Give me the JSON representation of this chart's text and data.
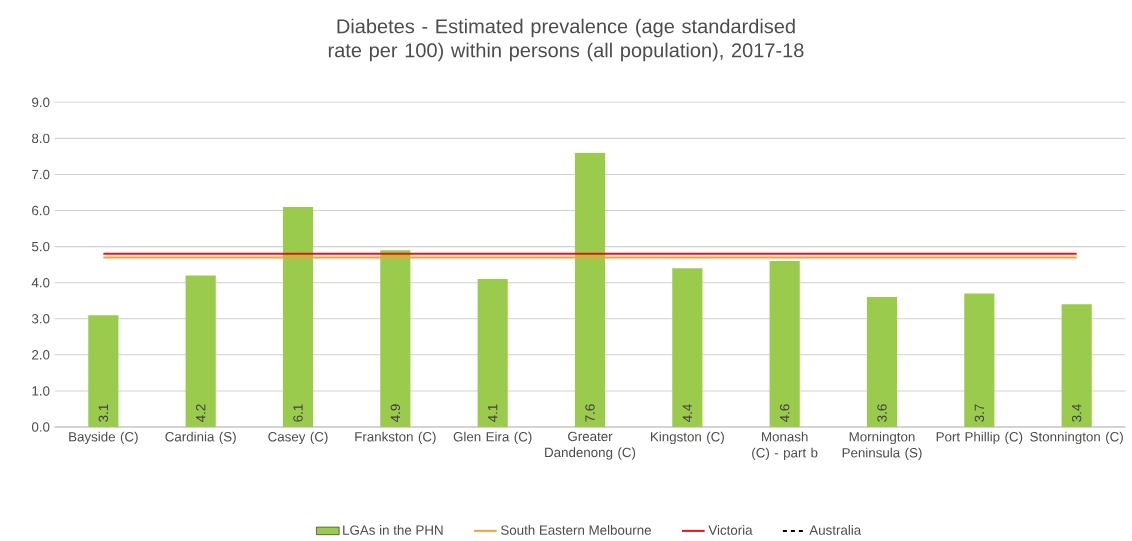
{
  "chart_data": {
    "type": "bar",
    "title": "Diabetes - Estimated prevalence (age standardised rate per 100) within persons (all population), 2017-18",
    "categories": [
      "Bayside (C)",
      "Cardinia (S)",
      "Casey (C)",
      "Frankston (C)",
      "Glen Eira (C)",
      "Greater Dandenong (C)",
      "Kingston (C)",
      "Monash (C) - part b",
      "Mornington Peninsula (S)",
      "Port Phillip (C)",
      "Stonnington (C)"
    ],
    "series": [
      {
        "name": "LGAs in the PHN",
        "color": "#9bcb4c",
        "values": [
          3.1,
          4.2,
          6.1,
          4.9,
          4.1,
          7.6,
          4.4,
          4.6,
          3.6,
          3.7,
          3.4
        ],
        "value_labels": [
          "3.1",
          "4.2",
          "6.1",
          "4.9",
          "4.1",
          "7.6",
          "4.4",
          "4.6",
          "3.6",
          "3.7",
          "3.4"
        ]
      },
      {
        "name": "South Eastern Melbourne",
        "type": "line",
        "color": "#f4a23a",
        "values": [
          4.7,
          4.7,
          4.7,
          4.7,
          4.7,
          4.7,
          4.7,
          4.7,
          4.7,
          4.7,
          4.7
        ]
      },
      {
        "name": "Victoria",
        "type": "line",
        "color": "#e8141a",
        "values": [
          4.8,
          4.8,
          4.8,
          4.8,
          4.8,
          4.8,
          4.8,
          4.8,
          4.8,
          4.8,
          4.8
        ]
      },
      {
        "name": "Australia",
        "type": "line",
        "color": "#000000",
        "line_style": "dashed",
        "values": [
          null,
          null,
          null,
          null,
          null,
          null,
          null,
          null,
          null,
          null,
          null
        ]
      }
    ],
    "ylim": [
      0,
      9
    ],
    "yticks": [
      {
        "value": 0,
        "label": "0.0"
      },
      {
        "value": 1,
        "label": "1.0"
      },
      {
        "value": 2,
        "label": "2.0"
      },
      {
        "value": 3,
        "label": "3.0"
      },
      {
        "value": 4,
        "label": "4.0"
      },
      {
        "value": 5,
        "label": "5.0"
      },
      {
        "value": 6,
        "label": "6.0"
      },
      {
        "value": 7,
        "label": "7.0"
      },
      {
        "value": 8,
        "label": "8.0"
      },
      {
        "value": 9,
        "label": "9.0"
      }
    ],
    "grid": "y",
    "legend": "bottom"
  }
}
